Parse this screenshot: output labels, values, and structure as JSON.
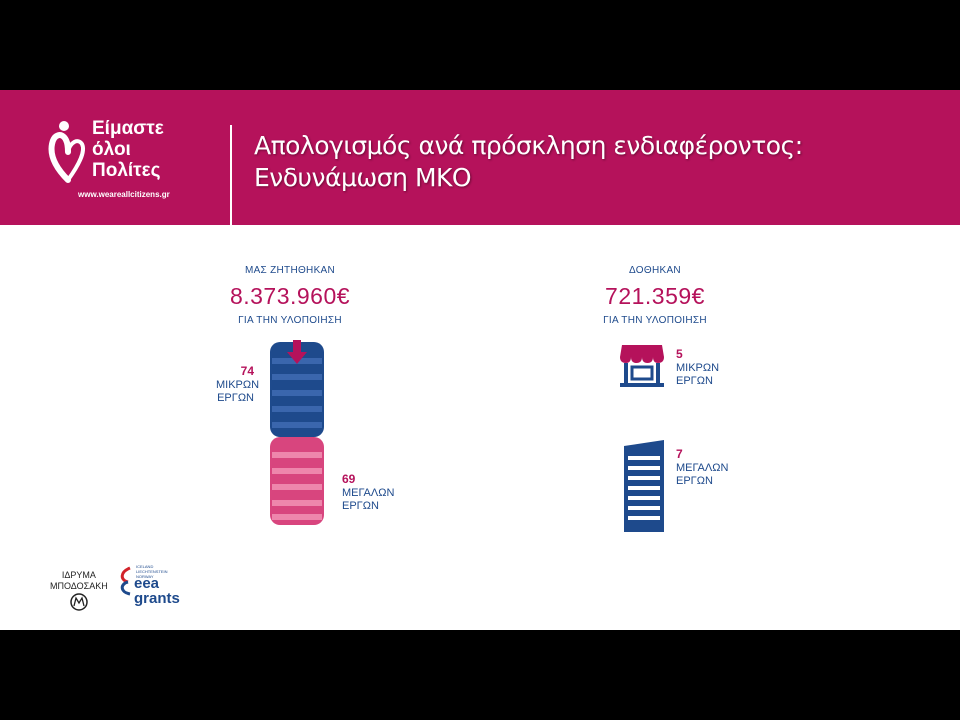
{
  "logo": {
    "line1": "Είμαστε",
    "line2": "όλοι",
    "line3": "Πολίτες",
    "url": "www.weareallcitizens.gr"
  },
  "title": {
    "line1": "Απολογισμός ανά πρόσκληση ενδιαφέροντος:",
    "line2": "Ενδυνάμωση ΜΚΟ"
  },
  "requested": {
    "heading": "ΜΑΣ ΖΗΤΗΘΗΚΑΝ",
    "amount": "8.373.960€",
    "sub": "ΓΙΑ ΤΗΝ ΥΛΟΠΟΙΗΣΗ",
    "small_count": "74",
    "small_label1": "ΜΙΚΡΩΝ",
    "small_label2": "ΕΡΓΩΝ",
    "large_count": "69",
    "large_label1": "ΜΕΓΑΛΩΝ",
    "large_label2": "ΕΡΓΩΝ"
  },
  "granted": {
    "heading": "ΔΟΘΗΚΑΝ",
    "amount": "721.359€",
    "sub": "ΓΙΑ ΤΗΝ ΥΛΟΠΟΙΗΣΗ",
    "small_count": "5",
    "small_label1": "ΜΙΚΡΩΝ",
    "small_label2": "ΕΡΓΩΝ",
    "large_count": "7",
    "large_label1": "ΜΕΓΑΛΩΝ",
    "large_label2": "ΕΡΓΩΝ"
  },
  "footer": {
    "foundation_line1": "ΙΔΡΥΜΑ",
    "foundation_line2": "ΜΠΟΔΟΣΑΚΗ",
    "eea_small": "ICELAND LIECHTENSTEIN NORWAY",
    "eea_line1": "eea",
    "eea_line2": "grants"
  },
  "colors": {
    "magenta": "#b5125b",
    "blue": "#1e4a8c"
  }
}
